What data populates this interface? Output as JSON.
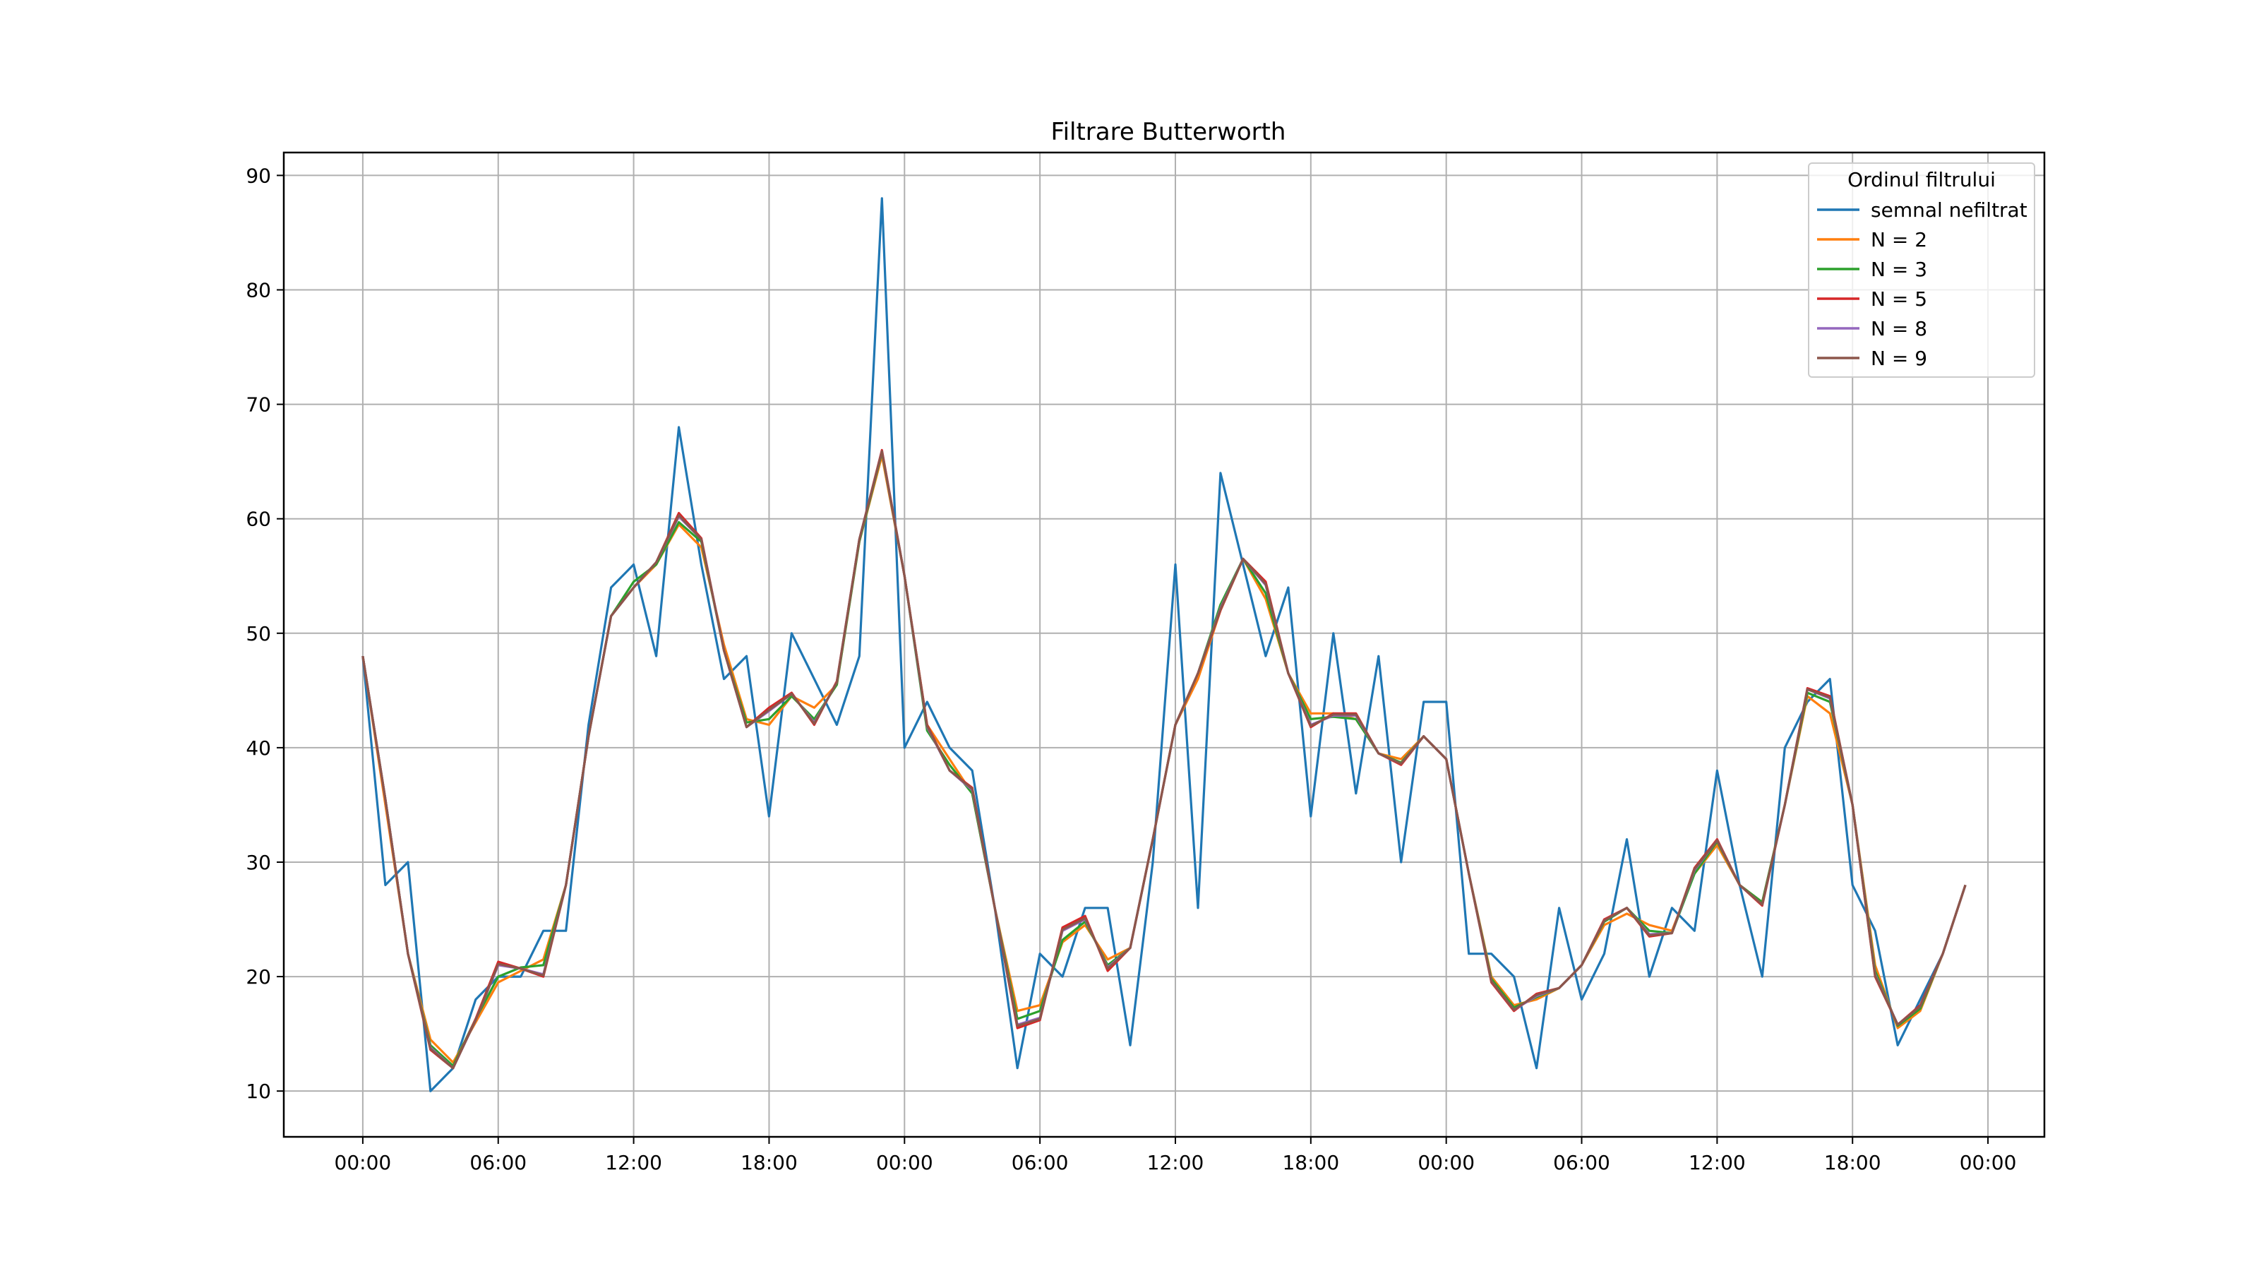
{
  "chart_data": {
    "type": "line",
    "title": "Filtrare Butterworth",
    "xlabel": "",
    "ylabel": "",
    "x_start_hour": 0,
    "x_step_hours": 1,
    "xlim_hours": [
      -3.5,
      74.5
    ],
    "ylim": [
      6,
      92
    ],
    "y_ticks": [
      10,
      20,
      30,
      40,
      50,
      60,
      70,
      80,
      90
    ],
    "x_tick_hours": [
      0,
      6,
      12,
      18,
      24,
      30,
      36,
      42,
      48,
      54,
      60,
      66,
      72
    ],
    "x_tick_labels": [
      "00:00",
      "06:00",
      "12:00",
      "18:00",
      "00:00",
      "06:00",
      "12:00",
      "18:00",
      "00:00",
      "06:00",
      "12:00",
      "18:00",
      "00:00"
    ],
    "grid": true,
    "legend": {
      "title": "Ordinul filtrului",
      "position": "top-right"
    },
    "series": [
      {
        "name": "semnal nefiltrat",
        "color": "#1f77b4",
        "values": [
          48,
          28,
          30,
          10,
          12,
          18,
          20,
          20,
          24,
          24,
          42,
          54,
          56,
          48,
          68,
          56,
          46,
          48,
          34,
          50,
          46,
          42,
          48,
          88,
          40,
          44,
          40,
          38,
          26,
          12,
          22,
          20,
          26,
          26,
          14,
          30,
          56,
          26,
          64,
          56,
          48,
          54,
          34,
          50,
          36,
          48,
          30,
          44,
          44,
          22,
          22,
          20,
          12,
          26,
          18,
          22,
          32,
          20,
          26,
          24,
          38,
          28,
          20,
          40,
          44,
          46,
          28,
          24,
          14,
          18,
          22,
          28
        ]
      },
      {
        "name": "N = 2",
        "color": "#ff7f0e",
        "values": [
          48,
          35,
          22,
          14.5,
          12.5,
          16,
          19.5,
          20.5,
          21.5,
          28,
          41,
          51.5,
          54,
          56,
          59.5,
          57.5,
          49,
          42.5,
          42,
          44.5,
          43.5,
          45.5,
          58,
          65.5,
          55,
          42,
          39,
          36,
          26,
          17,
          17.5,
          23,
          24.5,
          21.5,
          22.5,
          32,
          42,
          46,
          52,
          56.5,
          53,
          46.5,
          43,
          43,
          42.5,
          39.5,
          39,
          41,
          39,
          29,
          20,
          17.5,
          18,
          19,
          21,
          24.5,
          25.5,
          24.5,
          24,
          29,
          31.5,
          28,
          26.5,
          35,
          44.5,
          43,
          35,
          21,
          15.5,
          17,
          22,
          28
        ]
      },
      {
        "name": "N = 3",
        "color": "#2ca02c",
        "values": [
          48,
          35.5,
          22,
          14,
          12.2,
          16.3,
          20,
          20.8,
          21,
          28,
          41,
          51.5,
          54.5,
          56,
          59.7,
          58,
          48.5,
          42.2,
          42.5,
          44.5,
          42.5,
          45.5,
          58,
          65.8,
          55,
          41.5,
          38.5,
          36,
          26,
          16.3,
          17,
          23.2,
          24.8,
          21,
          22.5,
          32,
          42,
          46.5,
          52.5,
          56.5,
          53.5,
          46.5,
          42.5,
          42.7,
          42.5,
          39.5,
          38.7,
          41,
          39,
          29,
          19.8,
          17.3,
          18.2,
          19,
          21,
          24.8,
          26,
          24,
          23.8,
          29,
          31.8,
          28,
          26.5,
          35,
          44.8,
          44,
          35,
          20.5,
          15.7,
          17.2,
          22,
          28
        ]
      },
      {
        "name": "N = 5",
        "color": "#d62728",
        "values": [
          48,
          35.5,
          22,
          13.6,
          12,
          16.3,
          21.3,
          20.7,
          20,
          28,
          41,
          51.5,
          54,
          56.2,
          60.5,
          58.3,
          48.5,
          41.8,
          43.5,
          44.8,
          42,
          45.8,
          58.2,
          66,
          55,
          42,
          38,
          36.5,
          26,
          15.5,
          16.2,
          24.3,
          25.3,
          20.5,
          22.5,
          32,
          42,
          46.5,
          52,
          56.5,
          54.5,
          46.5,
          41.8,
          43,
          43,
          39.5,
          38.5,
          41,
          39,
          29,
          19.5,
          17,
          18.5,
          19,
          21,
          25,
          26,
          23.5,
          23.8,
          29.5,
          32,
          28,
          26.2,
          35,
          45.2,
          44.5,
          35,
          20,
          15.8,
          17.5,
          22,
          28
        ]
      },
      {
        "name": "N = 8",
        "color": "#9467bd",
        "values": [
          48,
          35.5,
          22,
          13.8,
          12,
          16.2,
          21,
          20.7,
          20.2,
          28,
          41,
          51.5,
          54,
          56.2,
          60.2,
          58.2,
          48.5,
          41.8,
          43.2,
          44.7,
          42.2,
          45.7,
          58.2,
          65.9,
          55,
          41.8,
          38,
          36.3,
          26,
          15.8,
          16.4,
          24,
          25,
          20.8,
          22.5,
          32,
          42,
          46.5,
          52.2,
          56.5,
          54.2,
          46.5,
          42,
          42.8,
          42.8,
          39.5,
          38.6,
          41,
          39,
          29,
          19.6,
          17.1,
          18.3,
          19,
          21,
          24.9,
          26,
          23.7,
          23.8,
          29.3,
          31.9,
          28,
          26.3,
          35,
          45.1,
          44.3,
          35,
          20.2,
          15.8,
          17.4,
          22,
          28
        ]
      },
      {
        "name": "N = 9",
        "color": "#8c564b",
        "values": [
          48,
          35.5,
          22,
          13.7,
          12,
          16.2,
          21.1,
          20.7,
          20.1,
          28,
          41,
          51.5,
          54,
          56.2,
          60.3,
          58.2,
          48.5,
          41.8,
          43.3,
          44.7,
          42.1,
          45.7,
          58.2,
          65.9,
          55,
          41.9,
          38,
          36.4,
          26,
          15.7,
          16.3,
          24.1,
          25.1,
          20.7,
          22.5,
          32,
          42,
          46.5,
          52.1,
          56.5,
          54.3,
          46.5,
          41.9,
          42.9,
          42.9,
          39.5,
          38.6,
          41,
          39,
          29,
          19.6,
          17.1,
          18.4,
          19,
          21,
          24.9,
          26,
          23.6,
          23.8,
          29.4,
          31.9,
          28,
          26.3,
          35,
          45.1,
          44.4,
          35,
          20.1,
          15.8,
          17.4,
          22,
          28
        ]
      }
    ]
  }
}
